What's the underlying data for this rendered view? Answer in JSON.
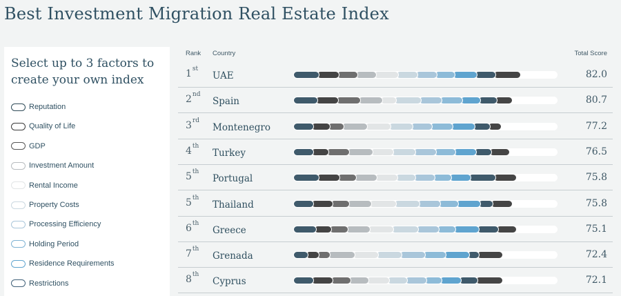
{
  "page": {
    "title": "Best Investment Migration Real Estate Index"
  },
  "sidebar": {
    "heading": "Select up to 3 factors to create your own index",
    "factors": [
      {
        "label": "Reputation",
        "color": "#2e4a57"
      },
      {
        "label": "Quality of Life",
        "color": "#3a3a3a"
      },
      {
        "label": "GDP",
        "color": "#555555"
      },
      {
        "label": "Investment Amount",
        "color": "#b7bcbf"
      },
      {
        "label": "Rental Income",
        "color": "#e2e5e6"
      },
      {
        "label": "Property Costs",
        "color": "#cad8e0"
      },
      {
        "label": "Processing Efficiency",
        "color": "#a9c6da"
      },
      {
        "label": "Holding Period",
        "color": "#7fb3d3"
      },
      {
        "label": "Residence Requirements",
        "color": "#5fa4cf"
      },
      {
        "label": "Restrictions",
        "color": "#3f5f78"
      }
    ]
  },
  "table": {
    "headers": {
      "rank": "Rank",
      "country": "Country",
      "score": "Total Score"
    },
    "rows": [
      {
        "rank": "1",
        "suffix": "st",
        "country": "UAE",
        "score": "82.0",
        "segments": [
          [
            "#3f5a6b",
            34
          ],
          [
            "#444444",
            29
          ],
          [
            "#6f6f6f",
            27
          ],
          [
            "#b7bcbf",
            27
          ],
          [
            "#e2e5e6",
            32
          ],
          [
            "#cad8e0",
            28
          ],
          [
            "#a9c6da",
            28
          ],
          [
            "#8dbbd8",
            26
          ],
          [
            "#5fa4cf",
            32
          ],
          [
            "#3f5a6b",
            27
          ],
          [
            "#454545",
            36
          ]
        ]
      },
      {
        "rank": "2",
        "suffix": "nd",
        "country": "Spain",
        "score": "80.7",
        "segments": [
          [
            "#3f5a6b",
            32
          ],
          [
            "#444444",
            30
          ],
          [
            "#6f6f6f",
            32
          ],
          [
            "#b7bcbf",
            32
          ],
          [
            "#e2e5e6",
            20
          ],
          [
            "#cad8e0",
            36
          ],
          [
            "#a9c6da",
            30
          ],
          [
            "#8dbbd8",
            30
          ],
          [
            "#5fa4cf",
            26
          ],
          [
            "#3f5a6b",
            24
          ],
          [
            "#454545",
            22
          ]
        ]
      },
      {
        "rank": "3",
        "suffix": "rd",
        "country": "Montenegro",
        "score": "77.2",
        "segments": [
          [
            "#3f5a6b",
            26
          ],
          [
            "#444444",
            24
          ],
          [
            "#6f6f6f",
            20
          ],
          [
            "#b7bcbf",
            34
          ],
          [
            "#e2e5e6",
            34
          ],
          [
            "#cad8e0",
            32
          ],
          [
            "#a9c6da",
            28
          ],
          [
            "#8dbbd8",
            30
          ],
          [
            "#5fa4cf",
            32
          ],
          [
            "#3f5a6b",
            22
          ],
          [
            "#454545",
            16
          ]
        ]
      },
      {
        "rank": "4",
        "suffix": "th",
        "country": "Turkey",
        "score": "76.5",
        "segments": [
          [
            "#3f5a6b",
            26
          ],
          [
            "#444444",
            22
          ],
          [
            "#6f6f6f",
            30
          ],
          [
            "#b7bcbf",
            34
          ],
          [
            "#e2e5e6",
            30
          ],
          [
            "#cad8e0",
            32
          ],
          [
            "#a9c6da",
            30
          ],
          [
            "#8dbbd8",
            28
          ],
          [
            "#5fa4cf",
            30
          ],
          [
            "#3f5a6b",
            22
          ],
          [
            "#454545",
            26
          ]
        ]
      },
      {
        "rank": "5",
        "suffix": "th",
        "country": "Portugal",
        "score": "75.8",
        "segments": [
          [
            "#3f5a6b",
            34
          ],
          [
            "#444444",
            30
          ],
          [
            "#6f6f6f",
            24
          ],
          [
            "#b7bcbf",
            30
          ],
          [
            "#e2e5e6",
            30
          ],
          [
            "#cad8e0",
            26
          ],
          [
            "#a9c6da",
            28
          ],
          [
            "#8dbbd8",
            24
          ],
          [
            "#5fa4cf",
            28
          ],
          [
            "#3f5a6b",
            36
          ],
          [
            "#454545",
            30
          ]
        ]
      },
      {
        "rank": "5",
        "suffix": "th",
        "country": "Thailand",
        "score": "75.8",
        "segments": [
          [
            "#3f5a6b",
            26
          ],
          [
            "#444444",
            28
          ],
          [
            "#6f6f6f",
            24
          ],
          [
            "#b7bcbf",
            32
          ],
          [
            "#e2e5e6",
            36
          ],
          [
            "#cad8e0",
            34
          ],
          [
            "#a9c6da",
            30
          ],
          [
            "#8dbbd8",
            26
          ],
          [
            "#5fa4cf",
            32
          ],
          [
            "#3f5a6b",
            18
          ],
          [
            "#454545",
            28
          ]
        ]
      },
      {
        "rank": "6",
        "suffix": "th",
        "country": "Greece",
        "score": "75.1",
        "segments": [
          [
            "#3f5a6b",
            30
          ],
          [
            "#444444",
            22
          ],
          [
            "#6f6f6f",
            24
          ],
          [
            "#b7bcbf",
            32
          ],
          [
            "#e2e5e6",
            34
          ],
          [
            "#cad8e0",
            36
          ],
          [
            "#a9c6da",
            30
          ],
          [
            "#8dbbd8",
            24
          ],
          [
            "#5fa4cf",
            34
          ],
          [
            "#3f5a6b",
            28
          ],
          [
            "#454545",
            26
          ]
        ]
      },
      {
        "rank": "7",
        "suffix": "th",
        "country": "Grenada",
        "score": "72.4",
        "segments": [
          [
            "#3f5a6b",
            18
          ],
          [
            "#444444",
            16
          ],
          [
            "#6f6f6f",
            16
          ],
          [
            "#b7bcbf",
            36
          ],
          [
            "#e2e5e6",
            34
          ],
          [
            "#cad8e0",
            34
          ],
          [
            "#a9c6da",
            34
          ],
          [
            "#8dbbd8",
            30
          ],
          [
            "#5fa4cf",
            34
          ],
          [
            "#3f5a6b",
            14
          ],
          [
            "#454545",
            34
          ]
        ]
      },
      {
        "rank": "8",
        "suffix": "th",
        "country": "Cyprus",
        "score": "72.1",
        "segments": [
          [
            "#3f5a6b",
            26
          ],
          [
            "#444444",
            28
          ],
          [
            "#6f6f6f",
            26
          ],
          [
            "#b7bcbf",
            26
          ],
          [
            "#e2e5e6",
            30
          ],
          [
            "#cad8e0",
            26
          ],
          [
            "#a9c6da",
            28
          ],
          [
            "#8dbbd8",
            22
          ],
          [
            "#5fa4cf",
            28
          ],
          [
            "#3f5a6b",
            24
          ],
          [
            "#454545",
            36
          ]
        ]
      }
    ]
  }
}
